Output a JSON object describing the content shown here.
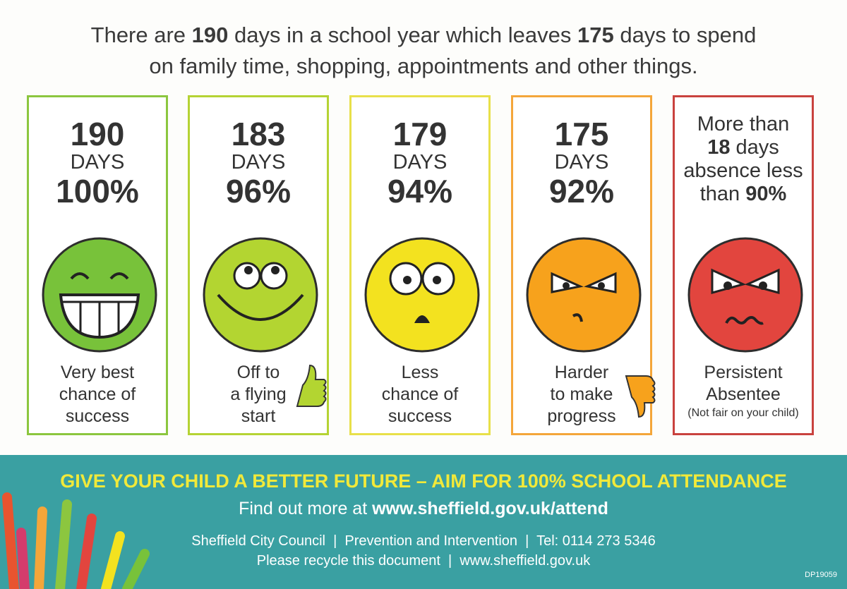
{
  "intro": {
    "line1": [
      "There are",
      "190",
      "days in a school year which leaves",
      "175",
      "days to spend"
    ],
    "line2": "on family time, shopping, appointments and other things."
  },
  "cards": [
    {
      "days": "190",
      "unit": "DAYS",
      "percent": "100%",
      "caption": [
        "Very best",
        "chance of",
        "success"
      ]
    },
    {
      "days": "183",
      "unit": "DAYS",
      "percent": "96%",
      "caption": [
        "Off to",
        "a flying",
        "start"
      ]
    },
    {
      "days": "179",
      "unit": "DAYS",
      "percent": "94%",
      "caption": [
        "Less",
        "chance of",
        "success"
      ]
    },
    {
      "days": "175",
      "unit": "DAYS",
      "percent": "92%",
      "caption": [
        "Harder",
        "to make",
        "progress"
      ]
    },
    {
      "heading": [
        "More than",
        "18",
        "days",
        "absence less",
        "than",
        "90%"
      ],
      "caption": [
        "Persistent",
        "Absentee",
        "(Not fair on your child)"
      ]
    }
  ],
  "footer": {
    "slogan": "GIVE YOUR CHILD A BETTER FUTURE – AIM FOR 100% SCHOOL ATTENDANCE",
    "more": [
      "Find out more at",
      "www.sheffield.gov.uk/attend"
    ],
    "council": "Sheffield City Council  |  Prevention and Intervention  |  Tel: 0114 273 5346",
    "recycle": "Please recycle this document  |  www.sheffield.gov.uk",
    "code": "DP19059"
  }
}
